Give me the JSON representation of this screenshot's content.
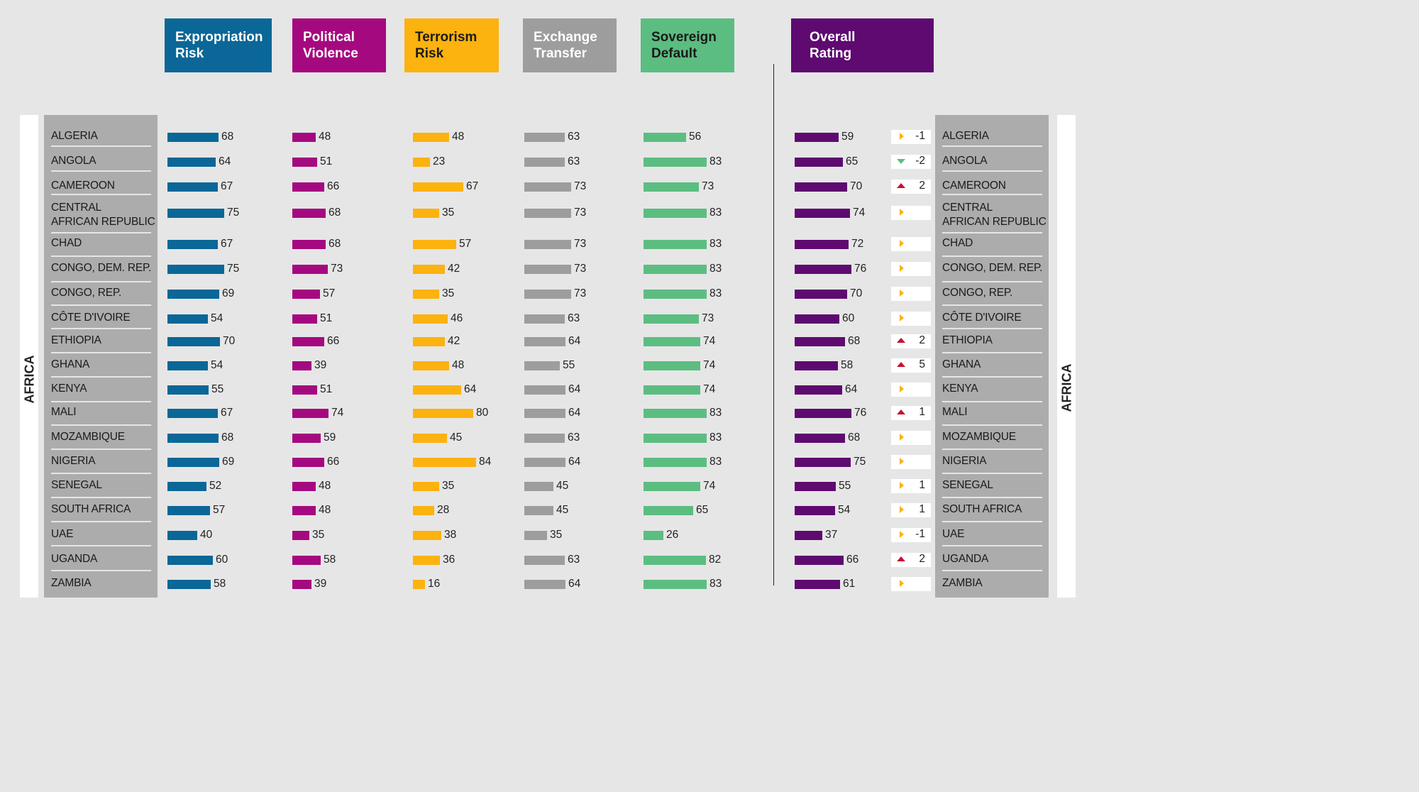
{
  "headers": [
    {
      "label": "Expropriation\nRisk",
      "color": "#0a6797",
      "left": 232,
      "width": 151
    },
    {
      "label": "Political\nViolence",
      "color": "#a5097f",
      "left": 412,
      "width": 132
    },
    {
      "label": "Terrorism\nRisk",
      "color": "#fcb20f",
      "left": 570,
      "width": 133,
      "textColor": "#1a1a1a"
    },
    {
      "label": "Exchange\nTransfer",
      "color": "#9d9d9d",
      "left": 737,
      "width": 132
    },
    {
      "label": "Sovereign\nDefault",
      "color": "#5cbd81",
      "left": 903,
      "width": 132,
      "textColor": "#1a1a1a"
    },
    {
      "label": "Overall\nRating",
      "color": "#5e0a70",
      "left": 1115,
      "width": 201,
      "padLeft": 26
    }
  ],
  "region": "AFRICA",
  "chart_data": {
    "type": "bar",
    "categories": [
      "ALGERIA",
      "ANGOLA",
      "CAMEROON",
      "CENTRAL\nAFRICAN REPUBLIC",
      "CHAD",
      "CONGO, DEM. REP.",
      "CONGO, REP.",
      "CÔTE D'IVOIRE",
      "ETHIOPIA",
      "GHANA",
      "KENYA",
      "MALI",
      "MOZAMBIQUE",
      "NIGERIA",
      "SENEGAL",
      "SOUTH AFRICA",
      "UAE",
      "UGANDA",
      "ZAMBIA"
    ],
    "series": [
      {
        "name": "Expropriation Risk",
        "color": "#0a6797",
        "values": [
          68,
          64,
          67,
          75,
          67,
          75,
          69,
          54,
          70,
          54,
          55,
          67,
          68,
          69,
          52,
          57,
          40,
          60,
          58
        ]
      },
      {
        "name": "Political Violence",
        "color": "#a5097f",
        "values": [
          48,
          51,
          66,
          68,
          68,
          73,
          57,
          51,
          66,
          39,
          51,
          74,
          59,
          66,
          48,
          48,
          35,
          58,
          39
        ]
      },
      {
        "name": "Terrorism Risk",
        "color": "#fcb20f",
        "values": [
          48,
          23,
          67,
          35,
          57,
          42,
          35,
          46,
          42,
          48,
          64,
          80,
          45,
          84,
          35,
          28,
          38,
          36,
          16
        ]
      },
      {
        "name": "Exchange Transfer",
        "color": "#9d9d9d",
        "values": [
          63,
          63,
          73,
          73,
          73,
          73,
          73,
          63,
          64,
          55,
          64,
          64,
          63,
          64,
          45,
          45,
          35,
          63,
          64
        ]
      },
      {
        "name": "Sovereign Default",
        "color": "#5cbd81",
        "values": [
          56,
          83,
          73,
          83,
          83,
          83,
          83,
          73,
          74,
          74,
          74,
          83,
          83,
          83,
          74,
          65,
          26,
          82,
          83
        ]
      },
      {
        "name": "Overall Rating",
        "color": "#5e0a70",
        "values": [
          59,
          65,
          70,
          74,
          72,
          76,
          70,
          60,
          68,
          58,
          64,
          76,
          68,
          75,
          55,
          54,
          37,
          66,
          61
        ]
      }
    ],
    "changes": [
      {
        "dir": "right",
        "label": "-1"
      },
      {
        "dir": "down",
        "label": "-2"
      },
      {
        "dir": "up",
        "label": "2"
      },
      {
        "dir": "right",
        "label": ""
      },
      {
        "dir": "right",
        "label": ""
      },
      {
        "dir": "right",
        "label": ""
      },
      {
        "dir": "right",
        "label": ""
      },
      {
        "dir": "right",
        "label": ""
      },
      {
        "dir": "up",
        "label": "2"
      },
      {
        "dir": "up",
        "label": "5"
      },
      {
        "dir": "right",
        "label": ""
      },
      {
        "dir": "up",
        "label": "1"
      },
      {
        "dir": "right",
        "label": ""
      },
      {
        "dir": "right",
        "label": ""
      },
      {
        "dir": "right",
        "label": "1"
      },
      {
        "dir": "right",
        "label": "1"
      },
      {
        "dir": "right",
        "label": "-1"
      },
      {
        "dir": "up",
        "label": "2"
      },
      {
        "dir": "right",
        "label": ""
      }
    ],
    "arrow_colors": {
      "up": "#c8102e",
      "down": "#5cbd81",
      "right": "#fcb20f"
    }
  }
}
